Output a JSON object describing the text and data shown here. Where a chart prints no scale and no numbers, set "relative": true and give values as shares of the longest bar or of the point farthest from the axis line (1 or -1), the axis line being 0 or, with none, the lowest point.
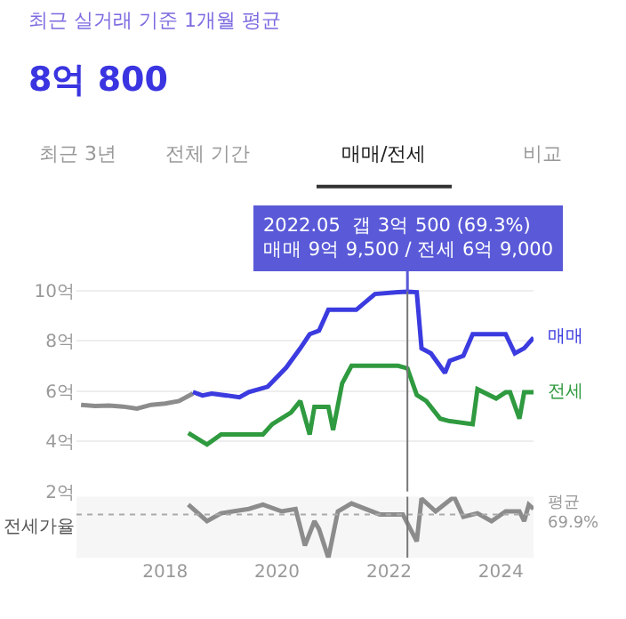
{
  "chart_data": [
    {
      "type": "line",
      "title": "최근 실거래 기준 1개월 평균",
      "subtitle": "8억 800",
      "annotations": [
        "최근 3년",
        "전체 기간",
        "매매/전세",
        "비교",
        {
          "text": "2022.05  갭 3억 500 (69.3%)\n매매 9억 9,500 / 전세 6억 9,000",
          "x": "2022-05",
          "y": 9.95
        }
      ],
      "series": [
        {
          "color": "#8c8c8c",
          "x": [
            "2016-07",
            "2016-10",
            "2017-01",
            "2017-04",
            "2017-07",
            "2017-10",
            "2018-01",
            "2018-04",
            "2018-07"
          ],
          "values": [
            5.45,
            5.4,
            5.42,
            5.38,
            5.3,
            5.45,
            5.5,
            5.6,
            5.9
          ]
        },
        {
          "name": "매매",
          "color": "#3b3be0",
          "x": [
            "2018-07",
            "2018-09",
            "2018-11",
            "2019-05",
            "2019-07",
            "2019-11",
            "2020-03",
            "2020-06",
            "2020-08",
            "2020-10",
            "2020-12",
            "2021-06",
            "2021-10",
            "2022-03",
            "2022-05",
            "2022-07",
            "2022-08",
            "2022-10",
            "2023-01",
            "2023-02",
            "2023-05",
            "2023-07",
            "2024-02",
            "2024-04",
            "2024-06",
            "2024-08"
          ],
          "values": [
            5.96,
            5.82,
            5.9,
            5.75,
            5.96,
            6.17,
            6.93,
            7.7,
            8.26,
            8.4,
            9.23,
            9.23,
            9.86,
            9.93,
            9.95,
            9.93,
            7.7,
            7.5,
            6.72,
            7.2,
            7.4,
            8.26,
            8.26,
            7.5,
            7.7,
            8.12
          ]
        },
        {
          "name": "전세",
          "color": "#2f9a3f",
          "x": [
            "2018-06",
            "2018-10",
            "2019-01",
            "2019-10",
            "2019-12",
            "2020-04",
            "2020-06",
            "2020-08",
            "2020-09",
            "2020-12",
            "2021-01",
            "2021-03",
            "2021-05",
            "2022-03",
            "2022-05",
            "2022-07",
            "2022-09",
            "2022-12",
            "2023-02",
            "2023-07",
            "2023-08",
            "2023-12",
            "2024-02",
            "2024-03",
            "2024-05",
            "2024-06",
            "2024-08"
          ],
          "values": [
            4.33,
            3.87,
            4.27,
            4.27,
            4.68,
            5.14,
            5.6,
            4.27,
            5.37,
            5.37,
            4.45,
            6.3,
            7.0,
            7.0,
            6.9,
            5.84,
            5.6,
            4.9,
            4.8,
            4.68,
            6.07,
            5.7,
            5.95,
            5.95,
            4.9,
            5.95,
            5.95
          ]
        }
      ],
      "xlim": [
        "2016-06",
        "2024-08"
      ],
      "ylim": [
        2,
        10.6
      ],
      "yticks": [
        {
          "value": 2,
          "label": "2억"
        },
        {
          "value": 4,
          "label": "4억"
        },
        {
          "value": 6,
          "label": "6억"
        },
        {
          "value": 8,
          "label": "8억"
        },
        {
          "value": 10,
          "label": "10억"
        }
      ],
      "grid": "y",
      "tick_labels": "y",
      "marker": "none",
      "line_style": "solid",
      "ref_lines": [
        {
          "axis": "x",
          "value": "2022-05",
          "color": "#777777"
        }
      ]
    },
    {
      "type": "line",
      "ylabel": "전세가율",
      "relative": true,
      "series": [
        {
          "color": "#8c8c8c",
          "x": [
            "2018-06",
            "2018-10",
            "2019-01",
            "2019-07",
            "2019-10",
            "2020-02",
            "2020-05",
            "2020-07",
            "2020-09",
            "2020-10",
            "2020-12",
            "2021-02",
            "2021-05",
            "2021-11",
            "2022-04",
            "2022-07",
            "2022-08",
            "2022-11",
            "2023-03",
            "2023-05",
            "2023-08",
            "2023-11",
            "2024-02",
            "2024-05",
            "2024-06",
            "2024-07",
            "2024-08"
          ],
          "values": [
            0.87,
            0.6,
            0.73,
            0.8,
            0.87,
            0.76,
            0.8,
            0.2,
            0.6,
            0.47,
            0,
            0.76,
            0.89,
            0.71,
            0.71,
            0.27,
            0.97,
            0.76,
            1,
            0.67,
            0.73,
            0.6,
            0.76,
            0.76,
            0.6,
            0.87,
            0.8
          ]
        }
      ],
      "xlim": [
        "2016-06",
        "2024-08"
      ],
      "xticks": [
        {
          "value": "2018-01",
          "label": "2018"
        },
        {
          "value": "2020-01",
          "label": "2020"
        },
        {
          "value": "2022-01",
          "label": "2022"
        },
        {
          "value": "2024-01",
          "label": "2024"
        }
      ],
      "grid": false,
      "tick_labels": "x",
      "marker": "none",
      "line_style": "solid",
      "ref_lines": [
        {
          "axis": "y",
          "value": 0.71,
          "label": "평균\n69.9%",
          "color": "#aaaaaa",
          "line_style": "dotted"
        },
        {
          "axis": "x",
          "value": "2022-05",
          "color": "#777777"
        }
      ]
    }
  ]
}
